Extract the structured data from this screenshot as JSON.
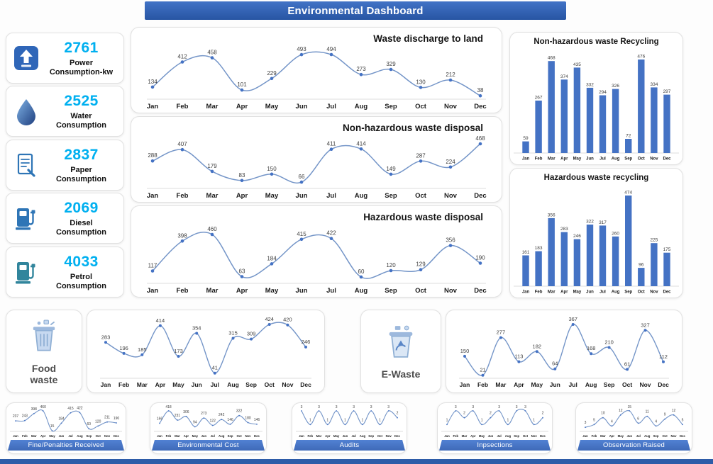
{
  "title_bar": {
    "title": "Environmental Dashboard"
  },
  "months": [
    "Jan",
    "Feb",
    "Mar",
    "Apr",
    "May",
    "Jun",
    "Jul",
    "Aug",
    "Sep",
    "Oct",
    "Nov",
    "Dec"
  ],
  "colors": {
    "header_blue": "#2d5ca8",
    "bar_blue": "#4472c4",
    "line_blue": "#7495c8",
    "dot_blue": "#4472c4",
    "kpi_value_blue": "#00b0f0",
    "ribbon_blue": "#4472c4"
  },
  "kpi_cards": [
    {
      "icon": "power-meter-icon",
      "value": "2761",
      "label": "Power Consumption-kw"
    },
    {
      "icon": "water-drop-icon",
      "value": "2525",
      "label": "Water Consumption"
    },
    {
      "icon": "paper-document-icon",
      "value": "2837",
      "label": "Paper Consumption"
    },
    {
      "icon": "diesel-pump-icon",
      "value": "2069",
      "label": "Diesel Consumption"
    },
    {
      "icon": "petrol-pump-icon",
      "value": "4033",
      "label": "Petrol Consumption"
    }
  ],
  "waste_cards": [
    {
      "icon": "food-waste-bin-icon",
      "label": "Food waste"
    },
    {
      "icon": "e-waste-bin-icon",
      "label": "E-Waste"
    }
  ],
  "chart_data": [
    {
      "type": "line",
      "title": "Waste discharge to land",
      "categories": "months",
      "values": [
        134,
        412,
        458,
        101,
        229,
        493,
        494,
        273,
        329,
        130,
        212,
        38
      ]
    },
    {
      "type": "line",
      "title": "Non-hazardous waste disposal",
      "categories": "months",
      "values": [
        288,
        407,
        179,
        83,
        150,
        66,
        411,
        414,
        149,
        287,
        224,
        468
      ]
    },
    {
      "type": "line",
      "title": "Hazardous waste disposal",
      "categories": "months",
      "values": [
        117,
        398,
        460,
        63,
        184,
        415,
        422,
        60,
        120,
        129,
        356,
        190
      ]
    },
    {
      "type": "bar",
      "title": "Non-hazardous waste Recycling",
      "categories": "months",
      "values": [
        59,
        267,
        468,
        374,
        435,
        332,
        294,
        326,
        72,
        476,
        334,
        297
      ]
    },
    {
      "type": "bar",
      "title": "Hazardous waste recycling",
      "categories": "months",
      "values": [
        161,
        183,
        356,
        283,
        246,
        322,
        317,
        260,
        474,
        96,
        225,
        175
      ]
    },
    {
      "type": "line",
      "title": "Food waste",
      "categories": "months",
      "values": [
        283,
        196,
        185,
        414,
        173,
        354,
        41,
        315,
        309,
        424,
        420,
        246
      ]
    },
    {
      "type": "line",
      "title": "E-Waste",
      "categories": "months",
      "values": [
        150,
        21,
        277,
        113,
        182,
        64,
        367,
        168,
        210,
        61,
        327,
        112
      ]
    },
    {
      "type": "line",
      "title": "Fine/Penalties Received",
      "categories": "months",
      "values": [
        237,
        243,
        398,
        460,
        15,
        184,
        415,
        422,
        60,
        120,
        211,
        190
      ]
    },
    {
      "type": "line",
      "title": "Environmental Cost",
      "categories": "months",
      "values": [
        166,
        418,
        231,
        306,
        94,
        273,
        122,
        242,
        146,
        322,
        180,
        146
      ]
    },
    {
      "type": "line",
      "title": "Audits",
      "categories": "months",
      "values": [
        3,
        1,
        3,
        1,
        3,
        1,
        3,
        1,
        3,
        1,
        3,
        2
      ]
    },
    {
      "type": "line",
      "title": "Inpsections",
      "categories": "months",
      "values": [
        1,
        3,
        2,
        3,
        1,
        2,
        3,
        1,
        3,
        3,
        1,
        2
      ]
    },
    {
      "type": "line",
      "title": "Observation Raised",
      "categories": "months",
      "values": [
        3,
        5,
        10,
        4,
        12,
        15,
        6,
        11,
        4,
        9,
        12,
        5
      ]
    }
  ]
}
